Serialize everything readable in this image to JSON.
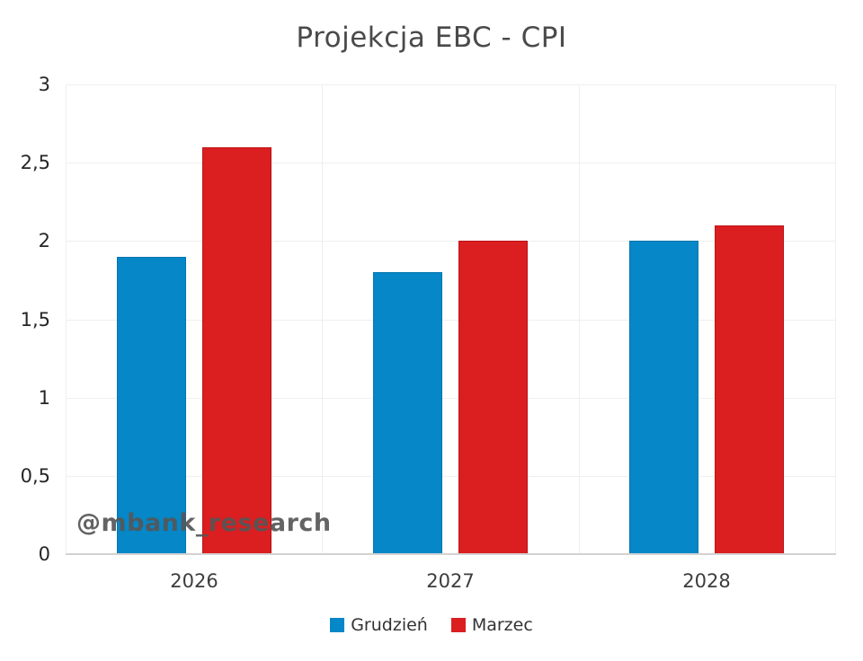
{
  "chart_data": {
    "type": "bar",
    "title": "Projekcja EBC - CPI",
    "categories": [
      "2026",
      "2027",
      "2028"
    ],
    "series": [
      {
        "name": "Grudzień",
        "color": "#0587c8",
        "border_color": "#0576ad",
        "values": [
          1.9,
          1.8,
          2.0
        ]
      },
      {
        "name": "Marzec",
        "color": "#db1e20",
        "border_color": "#bb1316",
        "values": [
          2.6,
          2.0,
          2.1
        ]
      }
    ],
    "ylim": [
      0,
      3
    ],
    "ytick_step": 0.5,
    "ytick_labels": [
      "0",
      "0,5",
      "1",
      "1,5",
      "2",
      "2,5",
      "3"
    ],
    "grid": true,
    "legend_position": "bottom",
    "watermark": "@mbank_research",
    "colors": {
      "grid": "#efefef",
      "axis": "#d2d2d2"
    }
  }
}
